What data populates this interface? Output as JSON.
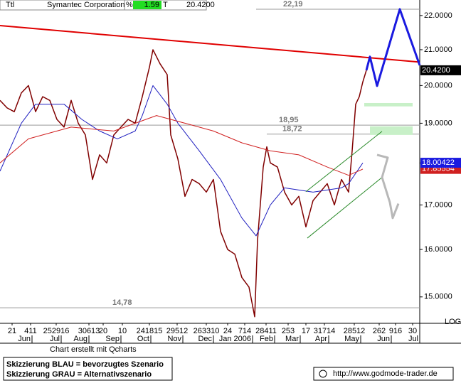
{
  "header": {
    "symbol": "Ttl",
    "name": "Symantec Corporation",
    "pct_label": "%",
    "change": "1.59",
    "t_label": "T",
    "last": "20.4200"
  },
  "footer": {
    "credit": "Chart erstellt mit Qcharts",
    "legend": [
      "Skizzierung BLAU = bevorzugtes Szenario",
      "Skizzierung GRAU = Alternativszenario"
    ],
    "url": "http://www.godmode-trader.de"
  },
  "chart_data": {
    "type": "line",
    "log": true,
    "scale_label": "LOG",
    "xlim": [
      0,
      295
    ],
    "ylim": [
      14.47,
      22.47
    ],
    "yticks": [
      {
        "value": 15,
        "label": "15.0000"
      },
      {
        "value": 16,
        "label": "16.0000"
      },
      {
        "value": 17,
        "label": "17.0000"
      },
      {
        "value": 18,
        "label": "18.0000"
      },
      {
        "value": 19,
        "label": "19.0000"
      },
      {
        "value": 20,
        "label": "20.0000"
      },
      {
        "value": 21,
        "label": "21.0000"
      },
      {
        "value": 22,
        "label": "22.0000"
      }
    ],
    "xticks": [
      {
        "value": 8.5,
        "label": "21"
      },
      {
        "value": 21.5,
        "label": "411"
      },
      {
        "value": 39.5,
        "label": "252916"
      },
      {
        "value": 62.5,
        "label": "30613"
      },
      {
        "value": 72.5,
        "label": "20"
      },
      {
        "value": 86,
        "label": "10"
      },
      {
        "value": 105,
        "label": "241815"
      },
      {
        "value": 124.5,
        "label": "29512"
      },
      {
        "value": 145,
        "label": "263310"
      },
      {
        "value": 160,
        "label": "24"
      },
      {
        "value": 172,
        "label": "714"
      },
      {
        "value": 187,
        "label": "28411"
      },
      {
        "value": 202.5,
        "label": "253"
      },
      {
        "value": 215,
        "label": "17"
      },
      {
        "value": 228,
        "label": "31714"
      },
      {
        "value": 249,
        "label": "28512"
      },
      {
        "value": 266.5,
        "label": "262"
      },
      {
        "value": 278,
        "label": "916"
      },
      {
        "value": 290,
        "label": "30"
      }
    ],
    "month_ticks": [
      {
        "value": 22.5,
        "label": "Jun"
      },
      {
        "value": 43,
        "label": "Jul"
      },
      {
        "value": 62.5,
        "label": "Aug"
      },
      {
        "value": 85,
        "label": "Sep"
      },
      {
        "value": 106,
        "label": "Oct"
      },
      {
        "value": 128.5,
        "label": "Nov"
      },
      {
        "value": 150,
        "label": "Dec"
      },
      {
        "value": 177.5,
        "label": "Jan 2006"
      },
      {
        "value": 193,
        "label": "Feb"
      },
      {
        "value": 211,
        "label": "Mar"
      },
      {
        "value": 231,
        "label": "Apr"
      },
      {
        "value": 253.5,
        "label": "May"
      },
      {
        "value": 275,
        "label": "Jun"
      },
      {
        "value": 295,
        "label": "Jul"
      }
    ],
    "series": [
      {
        "color": "#800000",
        "x": [
          0,
          5,
          10,
          15,
          20,
          25,
          30,
          35,
          40,
          45,
          50,
          55,
          60,
          65,
          70,
          75,
          80,
          85,
          90,
          95,
          100,
          105,
          107.5,
          112.5,
          117.5,
          120,
          125,
          130,
          135,
          140,
          145,
          150,
          155,
          160,
          165,
          170,
          175,
          179,
          181,
          185,
          187.5,
          190,
          195,
          200,
          205,
          210,
          215,
          220,
          225,
          230,
          235,
          240,
          245,
          247.5,
          250,
          252.5,
          255,
          257.5
        ],
        "values": [
          19.6,
          19.4,
          19.3,
          19.8,
          20.0,
          19.3,
          19.7,
          19.6,
          19.1,
          18.9,
          19.6,
          19.0,
          18.7,
          17.6,
          18.2,
          18.0,
          18.7,
          18.9,
          19.1,
          19.0,
          19.7,
          20.5,
          21.0,
          20.6,
          20.3,
          18.7,
          18.1,
          17.2,
          17.6,
          17.5,
          17.3,
          17.6,
          16.4,
          16.0,
          15.9,
          15.4,
          15.2,
          14.6,
          16.2,
          17.9,
          18.4,
          18.0,
          17.9,
          17.3,
          17.0,
          17.2,
          16.5,
          17.1,
          17.3,
          17.5,
          17.0,
          17.6,
          17.3,
          18.3,
          19.5,
          19.7,
          20.1,
          20.42
        ]
      },
      {
        "color": "#2020c0",
        "x": [
          0,
          15,
          25,
          45,
          57.5,
          70,
          82.5,
          95,
          100,
          107.5,
          117.5,
          125,
          140,
          155,
          170,
          180,
          190,
          200,
          220,
          240,
          245,
          255
        ],
        "values": [
          17.8,
          19.0,
          19.5,
          19.5,
          19.1,
          18.8,
          18.6,
          18.8,
          19.2,
          20.0,
          19.5,
          19.0,
          18.3,
          17.6,
          16.7,
          16.3,
          17.0,
          17.4,
          17.3,
          17.4,
          17.5,
          18.0
        ]
      },
      {
        "color": "#d02020",
        "x": [
          0,
          20,
          50,
          80,
          110,
          130,
          150,
          170,
          190,
          210,
          230,
          245,
          255
        ],
        "values": [
          18.0,
          18.6,
          18.9,
          18.8,
          19.2,
          19.0,
          18.8,
          18.5,
          18.3,
          18.2,
          17.9,
          17.7,
          17.85
        ]
      }
    ],
    "levels": [
      {
        "value": 22.19,
        "label": "22,19",
        "x0": 180
      },
      {
        "value": 18.95,
        "label": "18,95",
        "x0": 0
      },
      {
        "value": 18.72,
        "label": "18,72",
        "x0": 187.5
      },
      {
        "value": 14.78,
        "label": "14,78",
        "x0": 0
      }
    ],
    "trend": {
      "color": "#e00000",
      "x": [
        0,
        295
      ],
      "values": [
        21.7,
        20.65
      ]
    },
    "channel": [
      {
        "x": [
          215,
          268.5
        ],
        "values": [
          17.31,
          18.79
        ]
      },
      {
        "x": [
          216,
          268.5
        ],
        "values": [
          16.25,
          17.65
        ]
      }
    ],
    "channel_color": "#2a8a2a",
    "zones": [
      {
        "x": [
          256,
          290
        ],
        "values": [
          19.44,
          19.53
        ]
      },
      {
        "x": [
          260,
          290
        ],
        "values": [
          18.7,
          18.92
        ]
      }
    ],
    "zone_color": "#c8f0c8",
    "scenario_blue": {
      "color": "#1a1ae0",
      "x": [
        257.5,
        260,
        265,
        281,
        295
      ],
      "values": [
        20.42,
        20.8,
        19.99,
        22.19,
        20.56
      ]
    },
    "scenario_gray": {
      "color": "#b8b8b8",
      "x": [
        265,
        272.5,
        268.5,
        274,
        276,
        280
      ],
      "values": [
        18.2,
        18.13,
        17.65,
        17.06,
        16.7,
        17.03
      ]
    },
    "price_tags": [
      {
        "value": 17.85554,
        "label": "17.85554",
        "color": "#d02020"
      },
      {
        "value": 18.00422,
        "label": "18.00422",
        "color": "#1a1ae0"
      },
      {
        "value": 20.42,
        "label": "20.4200",
        "color": "#000000"
      }
    ]
  }
}
